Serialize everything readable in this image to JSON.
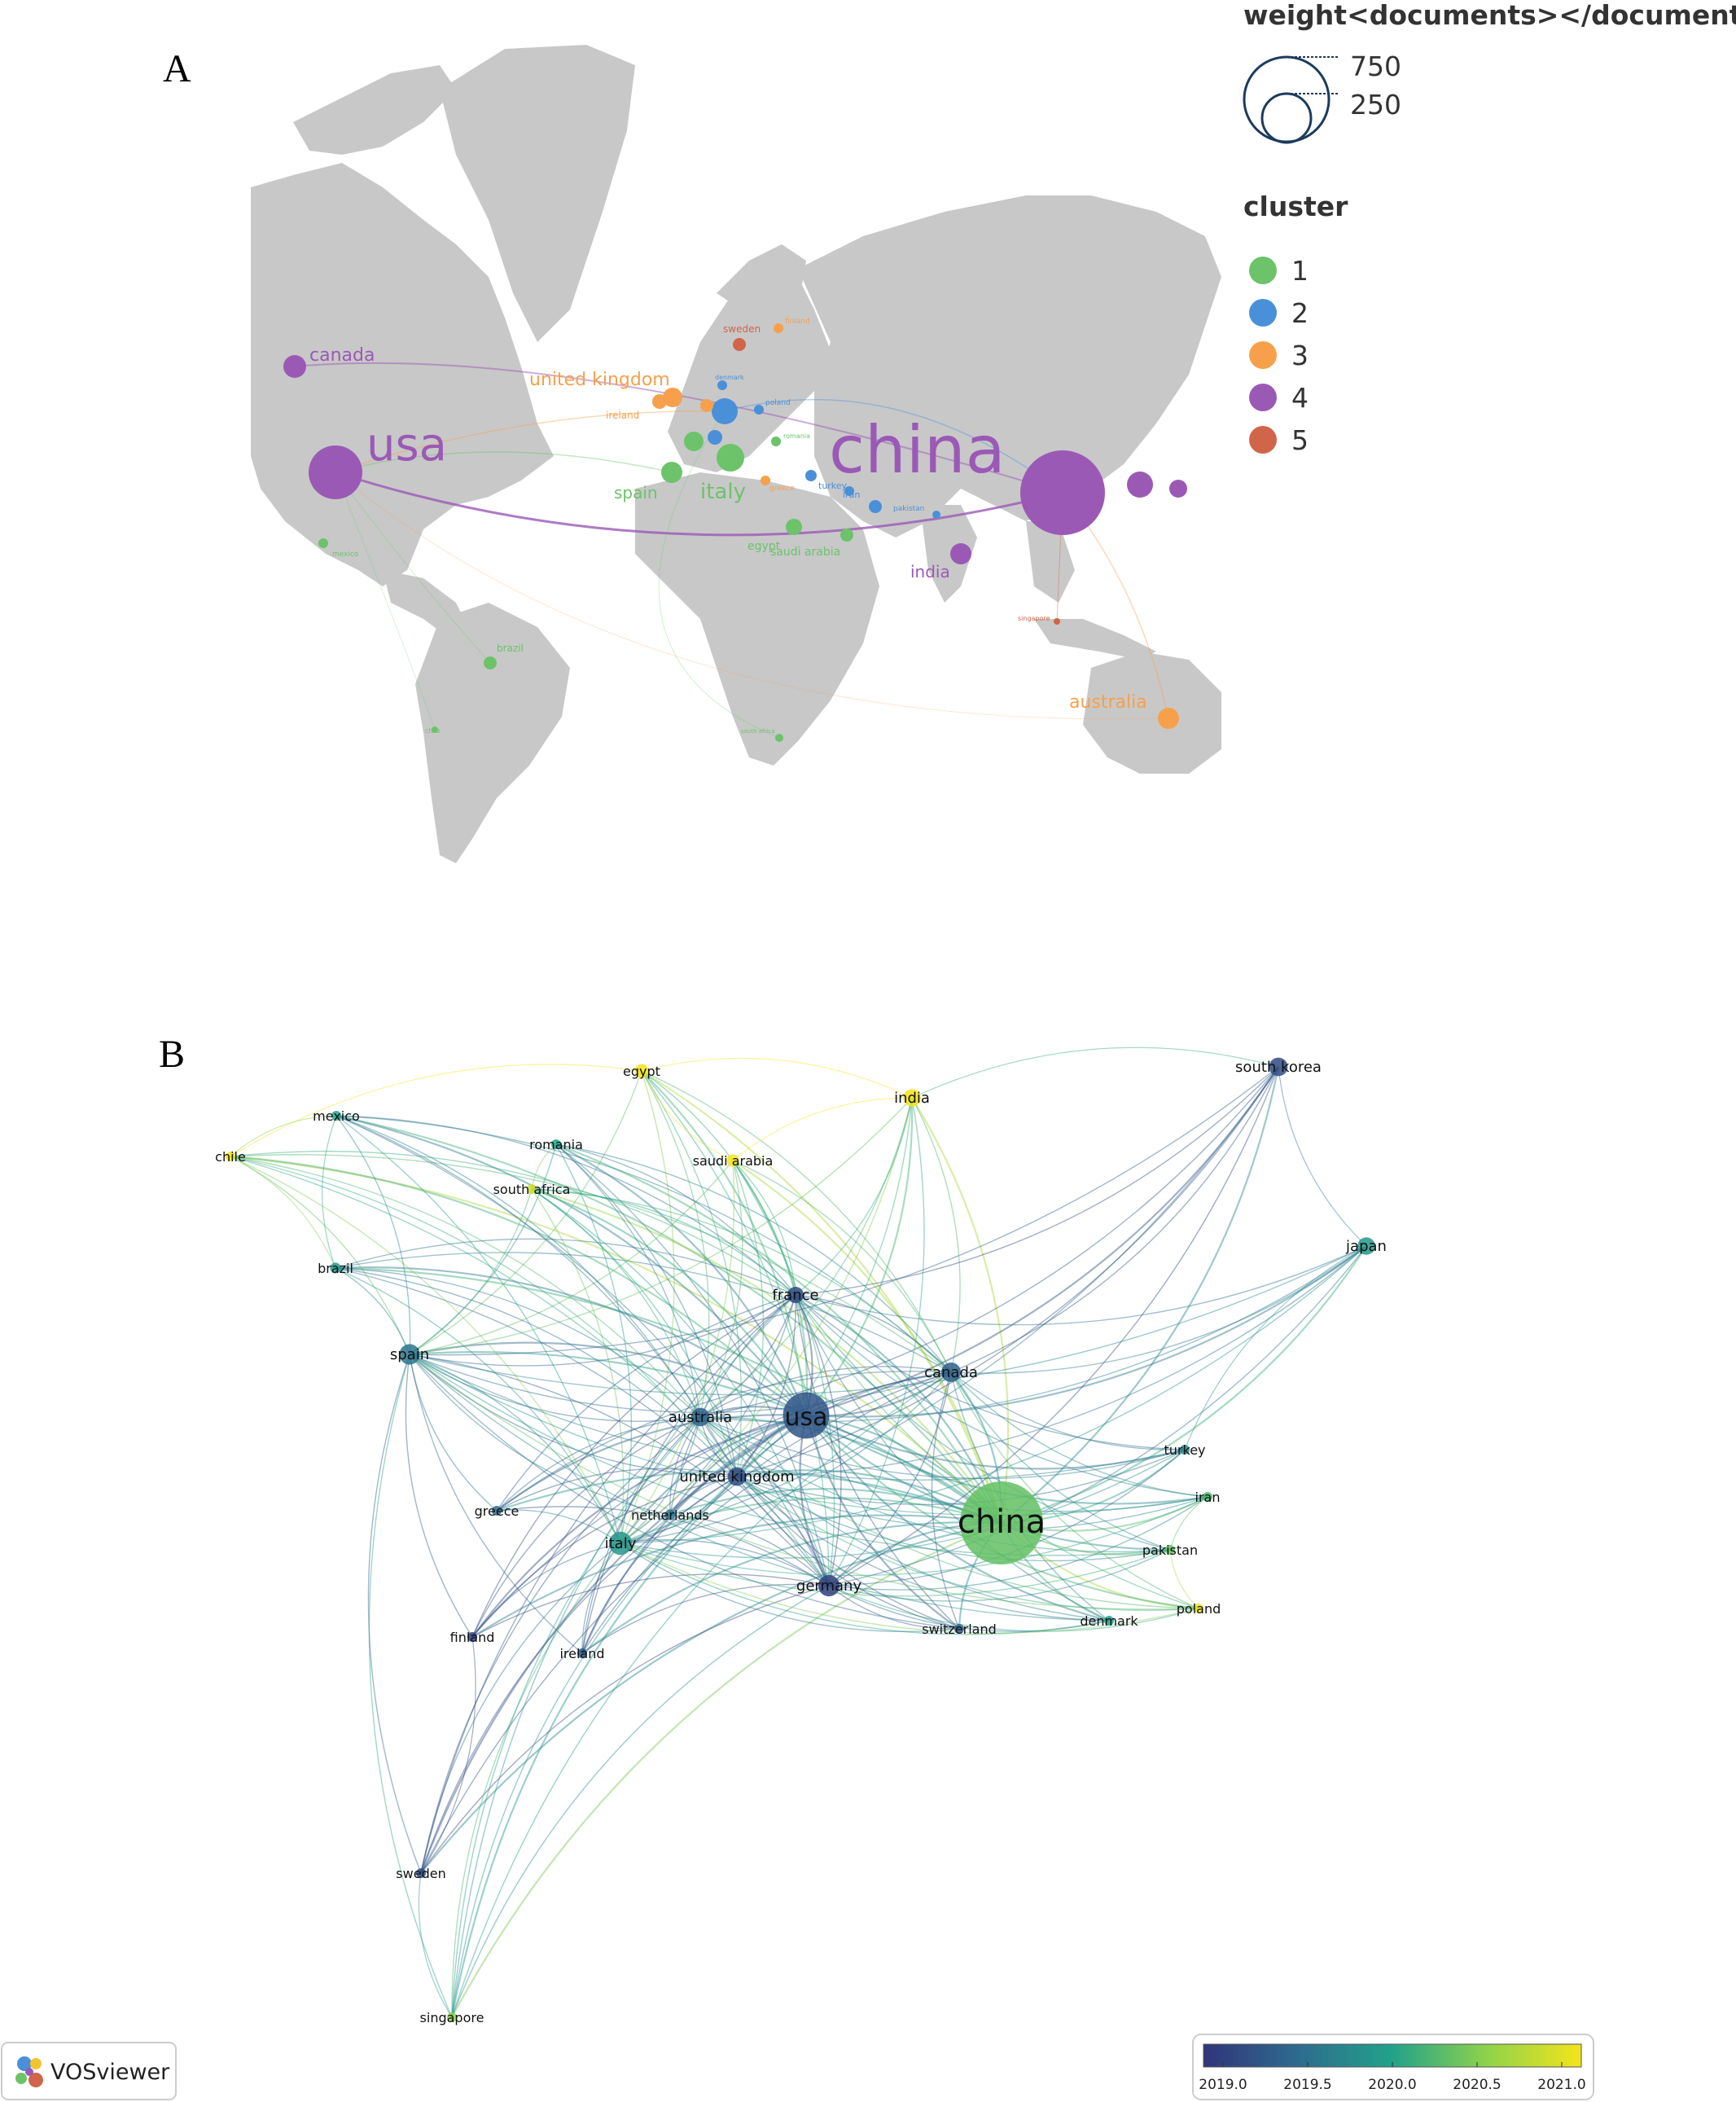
{
  "panelA": {
    "letter": "A",
    "size_legend": {
      "title": "weight<documents></documents>",
      "values": [
        "750",
        "250"
      ]
    },
    "cluster_legend": {
      "title": "cluster",
      "items": [
        {
          "label": "1",
          "color": "#6cc36a"
        },
        {
          "label": "2",
          "color": "#4a90d9"
        },
        {
          "label": "3",
          "color": "#f7a04b"
        },
        {
          "label": "4",
          "color": "#9b59b6"
        },
        {
          "label": "5",
          "color": "#d0654a"
        }
      ]
    },
    "countries": [
      {
        "name": "china",
        "cluster": 4,
        "label": "china"
      },
      {
        "name": "usa",
        "cluster": 4,
        "label": "usa"
      },
      {
        "name": "canada",
        "cluster": 4,
        "label": "canada"
      },
      {
        "name": "india",
        "cluster": 4,
        "label": "india"
      },
      {
        "name": "south korea",
        "cluster": 4,
        "label": ""
      },
      {
        "name": "japan",
        "cluster": 4,
        "label": ""
      },
      {
        "name": "united kingdom",
        "cluster": 3,
        "label": "united kingdom"
      },
      {
        "name": "ireland",
        "cluster": 3,
        "label": "ireland"
      },
      {
        "name": "australia",
        "cluster": 3,
        "label": "australia"
      },
      {
        "name": "finland",
        "cluster": 3,
        "label": "finland"
      },
      {
        "name": "greece",
        "cluster": 3,
        "label": "greece"
      },
      {
        "name": "netherlands",
        "cluster": 3,
        "label": ""
      },
      {
        "name": "sweden",
        "cluster": 5,
        "label": "sweden"
      },
      {
        "name": "singapore",
        "cluster": 5,
        "label": "singapore"
      },
      {
        "name": "spain",
        "cluster": 1,
        "label": "spain"
      },
      {
        "name": "italy",
        "cluster": 1,
        "label": "italy"
      },
      {
        "name": "egypt",
        "cluster": 1,
        "label": "egypt"
      },
      {
        "name": "saudi arabia",
        "cluster": 1,
        "label": "saudi arabia"
      },
      {
        "name": "mexico",
        "cluster": 1,
        "label": "mexico"
      },
      {
        "name": "brazil",
        "cluster": 1,
        "label": "brazil"
      },
      {
        "name": "chile",
        "cluster": 1,
        "label": "chile"
      },
      {
        "name": "south africa",
        "cluster": 1,
        "label": "south africa"
      },
      {
        "name": "romania",
        "cluster": 1,
        "label": "romania"
      },
      {
        "name": "france",
        "cluster": 1,
        "label": ""
      },
      {
        "name": "germany",
        "cluster": 2,
        "label": ""
      },
      {
        "name": "denmark",
        "cluster": 2,
        "label": "denmark"
      },
      {
        "name": "poland",
        "cluster": 2,
        "label": "poland"
      },
      {
        "name": "turkey",
        "cluster": 2,
        "label": "turkey"
      },
      {
        "name": "iran",
        "cluster": 2,
        "label": "iran"
      },
      {
        "name": "pakistan",
        "cluster": 2,
        "label": "pakistan"
      },
      {
        "name": "switzerland",
        "cluster": 2,
        "label": ""
      }
    ]
  },
  "panelB": {
    "letter": "B",
    "nodes": [
      {
        "name": "china",
        "label": "china",
        "year": 2020.3,
        "weight": 900
      },
      {
        "name": "usa",
        "label": "usa",
        "year": 2019.3,
        "weight": 280
      },
      {
        "name": "germany",
        "label": "germany",
        "year": 2019.1,
        "weight": 60
      },
      {
        "name": "italy",
        "label": "italy",
        "year": 2019.9,
        "weight": 70
      },
      {
        "name": "spain",
        "label": "spain",
        "year": 2019.6,
        "weight": 55
      },
      {
        "name": "canada",
        "label": "canada",
        "year": 2019.4,
        "weight": 50
      },
      {
        "name": "australia",
        "label": "australia",
        "year": 2019.4,
        "weight": 45
      },
      {
        "name": "united kingdom",
        "label": "united kingdom",
        "year": 2019.2,
        "weight": 45
      },
      {
        "name": "france",
        "label": "france",
        "year": 2019.2,
        "weight": 35
      },
      {
        "name": "south korea",
        "label": "south korea",
        "year": 2019.2,
        "weight": 45
      },
      {
        "name": "japan",
        "label": "japan",
        "year": 2019.9,
        "weight": 40
      },
      {
        "name": "india",
        "label": "india",
        "year": 2021.0,
        "weight": 40
      },
      {
        "name": "egypt",
        "label": "egypt",
        "year": 2021.0,
        "weight": 25
      },
      {
        "name": "saudi arabia",
        "label": "saudi arabia",
        "year": 2021.0,
        "weight": 20
      },
      {
        "name": "mexico",
        "label": "mexico",
        "year": 2020.0,
        "weight": 10
      },
      {
        "name": "chile",
        "label": "chile",
        "year": 2021.0,
        "weight": 8
      },
      {
        "name": "romania",
        "label": "romania",
        "year": 2020.0,
        "weight": 8
      },
      {
        "name": "south africa",
        "label": "south africa",
        "year": 2020.8,
        "weight": 8
      },
      {
        "name": "brazil",
        "label": "brazil",
        "year": 2019.9,
        "weight": 15
      },
      {
        "name": "turkey",
        "label": "turkey",
        "year": 2019.8,
        "weight": 8
      },
      {
        "name": "iran",
        "label": "iran",
        "year": 2020.2,
        "weight": 8
      },
      {
        "name": "pakistan",
        "label": "pakistan",
        "year": 2020.3,
        "weight": 10
      },
      {
        "name": "poland",
        "label": "poland",
        "year": 2021.0,
        "weight": 8
      },
      {
        "name": "denmark",
        "label": "denmark",
        "year": 2020.0,
        "weight": 8
      },
      {
        "name": "switzerland",
        "label": "switzerland",
        "year": 2019.4,
        "weight": 10
      },
      {
        "name": "netherlands",
        "label": "netherlands",
        "year": 2019.6,
        "weight": 15
      },
      {
        "name": "greece",
        "label": "greece",
        "year": 2019.5,
        "weight": 8
      },
      {
        "name": "finland",
        "label": "finland",
        "year": 2019.1,
        "weight": 8
      },
      {
        "name": "ireland",
        "label": "ireland",
        "year": 2019.3,
        "weight": 12
      },
      {
        "name": "sweden",
        "label": "sweden",
        "year": 2019.2,
        "weight": 10
      },
      {
        "name": "singapore",
        "label": "singapore",
        "year": 2020.5,
        "weight": 6
      }
    ],
    "colorbar": {
      "ticks": [
        "2019.0",
        "2019.5",
        "2020.0",
        "2020.5",
        "2021.0"
      ],
      "min": 2019.0,
      "max": 2021.0
    },
    "brand": "VOSviewer"
  }
}
